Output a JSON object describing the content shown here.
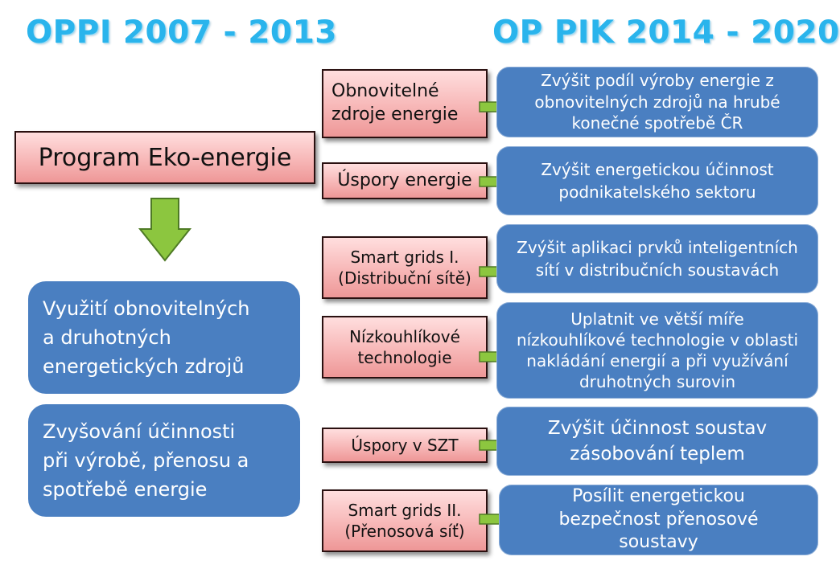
{
  "titles": {
    "left": "OPPI 2007 - 2013",
    "right": "OP PIK 2014 - 2020"
  },
  "program": {
    "label": "Program Eko-energie"
  },
  "left_items": [
    {
      "text": "Využití obnovitelných\na druhotných\nenergetických zdrojů"
    },
    {
      "text": "Zvyšování účinnosti\npři výrobě, přenosu a\nspotřebě energie"
    }
  ],
  "rows": [
    {
      "category": "Obnovitelné\nzdroje energie",
      "goal": "Zvýšit podíl výroby energie z\nobnovitelných zdrojů na hrubé\nkonečné spotřebě ČR"
    },
    {
      "category": "Úspory energie",
      "goal": "Zvýšit energetickou účinnost\npodnikatelského sektoru"
    },
    {
      "category": "Smart grids I.\n(Distribuční sítě)",
      "goal": "Zvýšit aplikaci prvků inteligentních\nsítí v distribučních soustavách"
    },
    {
      "category": "Nízkouhlíkové\ntechnologie",
      "goal": "Uplatnit ve větší míře\nnízkouhlíkové technologie v oblasti\nnakládání energií a při využívání\ndruhotných surovin"
    },
    {
      "category": "Úspory v SZT",
      "goal": "Zvýšit účinnost soustav\nzásobování teplem"
    },
    {
      "category": "Smart grids II.\n(Přenosová síť)",
      "goal": "Posílit energetickou\nbezpečnost přenosové\nsoustavy"
    }
  ],
  "colors": {
    "title": "#2ab4ec",
    "blue_box": "#4a7fc1",
    "red_box": "#f7b7b7",
    "arrow": "#8cc63f"
  }
}
